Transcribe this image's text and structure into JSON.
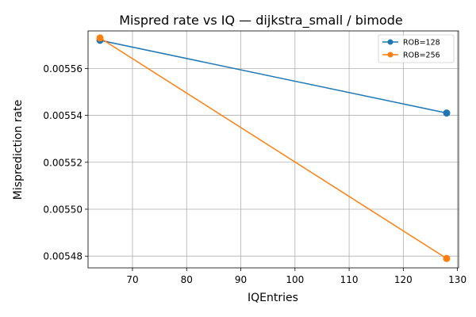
{
  "chart_data": {
    "type": "line",
    "title": "Mispred rate vs IQ — dijkstra_small / bimode",
    "xlabel": "IQEntries",
    "ylabel": "Misprediction rate",
    "xlim": [
      61.8,
      130.2
    ],
    "ylim": [
      0.005475,
      0.005576
    ],
    "xticks": [
      70,
      80,
      90,
      100,
      110,
      120,
      130
    ],
    "xtick_labels": [
      "70",
      "80",
      "90",
      "100",
      "110",
      "120",
      "130"
    ],
    "yticks": [
      0.00548,
      0.0055,
      0.00552,
      0.00554,
      0.00556
    ],
    "ytick_labels": [
      "0.00548",
      "0.00550",
      "0.00552",
      "0.00554",
      "0.00556"
    ],
    "grid": true,
    "legend_position": "top-right",
    "series": [
      {
        "name": "ROB=128",
        "color": "#1f77b4",
        "marker": "circle",
        "x": [
          64,
          128
        ],
        "y": [
          0.005572,
          0.005541
        ]
      },
      {
        "name": "ROB=256",
        "color": "#ff7f0e",
        "marker": "circle",
        "x": [
          64,
          128
        ],
        "y": [
          0.005573,
          0.005479
        ]
      }
    ]
  }
}
